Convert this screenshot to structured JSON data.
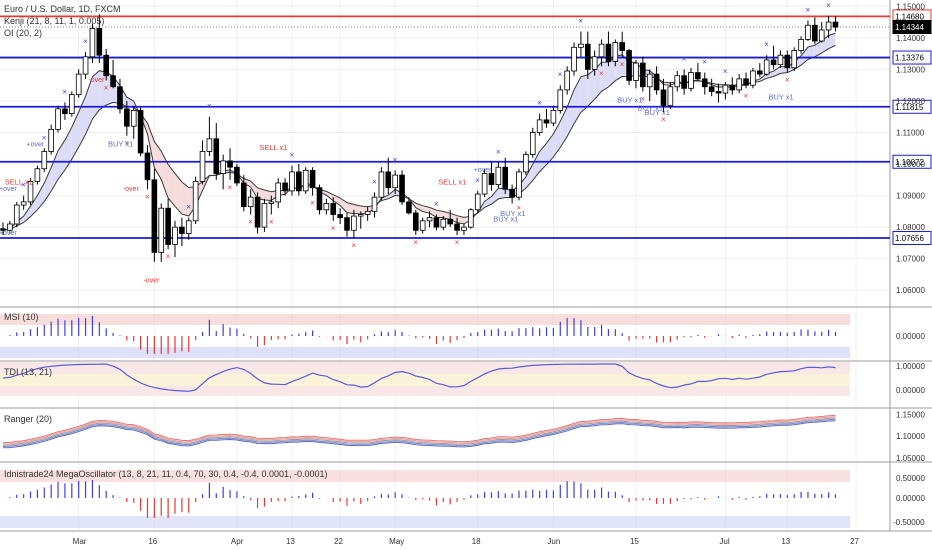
{
  "header": {
    "symbol_title": "Euro / U.S. Dollar, 1D, FXCM",
    "indicator_1": "Kenji (21, 8, 11, 1, 0.005)",
    "indicator_2": "OI (20, 2)"
  },
  "panes": {
    "msi": {
      "title": "MSI (10)",
      "ticks": [
        "0.00000"
      ]
    },
    "tdi": {
      "title": "TDI (13, 21)",
      "ticks": [
        "1.00000",
        "0.00000"
      ]
    },
    "ranger": {
      "title": "Ranger (20)",
      "ticks": [
        "1.15000",
        "1.10000",
        "1.05000"
      ]
    },
    "mega": {
      "title": "Idnistrade24 MegaOscillator (13, 8, 21, 11, 0.4, 70, 30, 0.4, -0.4, 0.0001, -0.0001)",
      "ticks": [
        "0.50000",
        "0.00000",
        "-0.50000"
      ]
    }
  },
  "price_axis": {
    "ticks": [
      "1.15000",
      "1.14000",
      "1.13000",
      "1.12000",
      "1.11000",
      "1.10000",
      "1.09000",
      "1.08000",
      "1.07000",
      "1.06000"
    ],
    "range": [
      1.055,
      1.152
    ]
  },
  "horizontal_levels": [
    {
      "label": "1.14680",
      "value": 1.1468,
      "color": "#e53935",
      "current": false
    },
    {
      "label": "1.14344",
      "value": 1.14344,
      "color": "#000000",
      "current": true
    },
    {
      "label": "1.13376",
      "value": 1.13376,
      "color": "#1a1adc",
      "current": false
    },
    {
      "label": "1.11815",
      "value": 1.11815,
      "color": "#1a1adc",
      "current": false
    },
    {
      "label": "1.10072",
      "value": 1.10072,
      "color": "#1a1adc",
      "current": false
    },
    {
      "label": "1.07656",
      "value": 1.07656,
      "color": "#1a1adc",
      "current": false
    }
  ],
  "time_axis": {
    "labels": [
      {
        "text": "Mar",
        "bar": 11
      },
      {
        "text": "16",
        "bar": 22
      },
      {
        "text": "Apr",
        "bar": 34
      },
      {
        "text": "13",
        "bar": 42
      },
      {
        "text": "22",
        "bar": 49
      },
      {
        "text": "May",
        "bar": 57
      },
      {
        "text": "18",
        "bar": 69
      },
      {
        "text": "Jun",
        "bar": 80
      },
      {
        "text": "15",
        "bar": 92
      },
      {
        "text": "Jul",
        "bar": 105
      },
      {
        "text": "13",
        "bar": 114
      },
      {
        "text": "27",
        "bar": 124
      }
    ]
  },
  "signal_labels": [
    {
      "text": "SELL x1",
      "bar": 2,
      "price": 1.0935,
      "color": "#e53935"
    },
    {
      "text": "BUY x1",
      "bar": 17,
      "price": 1.1055,
      "color": "#5c6bc0"
    },
    {
      "text": "SELL x1",
      "bar": 39,
      "price": 1.1045,
      "color": "#e53935"
    },
    {
      "text": "SELL x1",
      "bar": 65,
      "price": 1.0935,
      "color": "#e53935"
    },
    {
      "text": "BUY x1",
      "bar": 74,
      "price": 1.0835,
      "color": "#5c6bc0"
    },
    {
      "text": "BUY x1",
      "bar": 73,
      "price": 1.0818,
      "color": "#5c6bc0"
    },
    {
      "text": "BUY x1",
      "bar": 91,
      "price": 1.1195,
      "color": "#5c6bc0"
    },
    {
      "text": "BUY x1",
      "bar": 94,
      "price": 1.117,
      "color": "#5c6bc0"
    },
    {
      "text": "BUY x1",
      "bar": 95,
      "price": 1.1155,
      "color": "#5c6bc0"
    },
    {
      "text": "BUY x1",
      "bar": 113,
      "price": 1.1205,
      "color": "#5c6bc0"
    }
  ],
  "over_labels": [
    {
      "text": "+over",
      "bar": 4,
      "price": 1.1055,
      "color": "#5c6bc0"
    },
    {
      "text": "-over",
      "bar": 13,
      "price": 1.126,
      "color": "#e53935"
    },
    {
      "text": "-over",
      "bar": 18,
      "price": 1.0915,
      "color": "#e53935"
    },
    {
      "text": "-over",
      "bar": 21,
      "price": 1.0625,
      "color": "#e53935"
    },
    {
      "text": "+over",
      "bar": 69,
      "price": 1.0975,
      "color": "#5c6bc0"
    },
    {
      "text": "+over",
      "bar": 0,
      "price": 1.0915,
      "color": "#5c6bc0"
    },
    {
      "text": "+over",
      "bar": 0,
      "price": 1.0775,
      "color": "#5c6bc0"
    }
  ],
  "colors": {
    "up": "#ffffff",
    "down": "#000000",
    "kenji_fill_bull": "#dcdcf7",
    "kenji_fill_bear": "#f6dcdc",
    "kenji_fill_neutral": "#e4efe0",
    "blue": "#3f3fe0",
    "red": "#e53935",
    "band_red": "#f4c7c7",
    "band_blue": "#c9cdf6",
    "grid": "#d9d9d9"
  },
  "chart_data": {
    "type": "candlestick",
    "symbol": "Euro / U.S. Dollar",
    "interval": "1D",
    "source": "FXCM",
    "candles": [
      [
        1.0795,
        1.0815,
        1.0775,
        1.079
      ],
      [
        1.079,
        1.082,
        1.078,
        1.081
      ],
      [
        1.081,
        1.088,
        1.08,
        1.087
      ],
      [
        1.087,
        1.09,
        1.0855,
        1.088
      ],
      [
        1.088,
        1.0955,
        1.087,
        1.0945
      ],
      [
        1.0945,
        1.0995,
        1.0935,
        1.0985
      ],
      [
        1.0985,
        1.105,
        1.0975,
        1.104
      ],
      [
        1.104,
        1.1125,
        1.103,
        1.111
      ],
      [
        1.111,
        1.1185,
        1.11,
        1.1175
      ],
      [
        1.1175,
        1.1195,
        1.114,
        1.116
      ],
      [
        1.116,
        1.123,
        1.115,
        1.122
      ],
      [
        1.122,
        1.13,
        1.121,
        1.1285
      ],
      [
        1.1285,
        1.1355,
        1.127,
        1.134
      ],
      [
        1.134,
        1.1445,
        1.132,
        1.143
      ],
      [
        1.143,
        1.1475,
        1.132,
        1.1345
      ],
      [
        1.1345,
        1.1365,
        1.1265,
        1.128
      ],
      [
        1.128,
        1.133,
        1.124,
        1.1245
      ],
      [
        1.1245,
        1.127,
        1.116,
        1.1175
      ],
      [
        1.1175,
        1.12,
        1.109,
        1.112
      ],
      [
        1.112,
        1.1185,
        1.108,
        1.117
      ],
      [
        1.117,
        1.118,
        1.1025,
        1.1035
      ],
      [
        1.1035,
        1.106,
        1.092,
        1.095
      ],
      [
        1.095,
        1.0985,
        1.069,
        1.072
      ],
      [
        1.072,
        1.0875,
        1.069,
        1.086
      ],
      [
        1.086,
        1.089,
        1.073,
        1.0745
      ],
      [
        1.0745,
        1.082,
        1.0705,
        1.08
      ],
      [
        1.08,
        1.083,
        1.074,
        1.078
      ],
      [
        1.078,
        1.083,
        1.076,
        1.082
      ],
      [
        1.082,
        1.096,
        1.081,
        1.0945
      ],
      [
        1.0945,
        1.1075,
        1.0935,
        1.104
      ],
      [
        1.104,
        1.115,
        1.1025,
        1.108
      ],
      [
        1.108,
        1.113,
        1.095,
        1.097
      ],
      [
        1.097,
        1.103,
        1.092,
        1.101
      ],
      [
        1.101,
        1.105,
        1.095,
        1.099
      ],
      [
        1.099,
        1.1,
        1.093,
        1.094
      ],
      [
        1.094,
        1.0965,
        1.085,
        1.0865
      ],
      [
        1.0865,
        1.092,
        1.084,
        1.0895
      ],
      [
        1.0895,
        1.091,
        1.078,
        1.08
      ],
      [
        1.08,
        1.089,
        1.0785,
        1.0875
      ],
      [
        1.0875,
        1.09,
        1.084,
        1.088
      ],
      [
        1.088,
        1.0955,
        1.086,
        1.094
      ],
      [
        1.094,
        1.0955,
        1.09,
        1.0915
      ],
      [
        1.0915,
        1.0995,
        1.09,
        1.0975
      ],
      [
        1.0975,
        1.1,
        1.09,
        1.0915
      ],
      [
        1.0915,
        1.099,
        1.0905,
        1.098
      ],
      [
        1.098,
        1.099,
        1.09,
        1.0925
      ],
      [
        1.0925,
        1.0935,
        1.084,
        1.0855
      ],
      [
        1.0855,
        1.089,
        1.084,
        1.0875
      ],
      [
        1.0875,
        1.0895,
        1.082,
        1.084
      ],
      [
        1.084,
        1.086,
        1.081,
        1.083
      ],
      [
        1.083,
        1.0845,
        1.077,
        1.079
      ],
      [
        1.079,
        1.0855,
        1.0765,
        1.0835
      ],
      [
        1.0835,
        1.085,
        1.0795,
        1.084
      ],
      [
        1.084,
        1.0865,
        1.082,
        1.085
      ],
      [
        1.085,
        1.091,
        1.083,
        1.0895
      ],
      [
        1.0895,
        1.099,
        1.0885,
        1.0975
      ],
      [
        1.0975,
        1.102,
        1.0905,
        1.0925
      ],
      [
        1.0925,
        1.098,
        1.0905,
        1.0965
      ],
      [
        1.0965,
        1.098,
        1.087,
        1.088
      ],
      [
        1.088,
        1.0895,
        1.084,
        1.0845
      ],
      [
        1.0845,
        1.0855,
        1.0775,
        1.079
      ],
      [
        1.079,
        1.083,
        1.078,
        1.082
      ],
      [
        1.082,
        1.085,
        1.08,
        1.083
      ],
      [
        1.083,
        1.084,
        1.079,
        1.08
      ],
      [
        1.08,
        1.0835,
        1.079,
        1.0825
      ],
      [
        1.0825,
        1.0855,
        1.08,
        1.081
      ],
      [
        1.081,
        1.083,
        1.0775,
        1.079
      ],
      [
        1.079,
        1.081,
        1.0775,
        1.08
      ],
      [
        1.08,
        1.086,
        1.0795,
        1.0855
      ],
      [
        1.0855,
        1.0915,
        1.0845,
        1.0905
      ],
      [
        1.0905,
        1.0985,
        1.0895,
        1.097
      ],
      [
        1.097,
        1.101,
        1.0915,
        1.0935
      ],
      [
        1.0935,
        1.1005,
        1.0925,
        1.099
      ],
      [
        1.099,
        1.102,
        1.0905,
        1.092
      ],
      [
        1.092,
        1.0935,
        1.0875,
        1.0895
      ],
      [
        1.0895,
        1.0985,
        1.0885,
        1.0975
      ],
      [
        1.0975,
        1.104,
        1.0965,
        1.103
      ],
      [
        1.103,
        1.1115,
        1.102,
        1.11
      ],
      [
        1.11,
        1.116,
        1.109,
        1.114
      ],
      [
        1.114,
        1.1175,
        1.1115,
        1.113
      ],
      [
        1.113,
        1.1185,
        1.112,
        1.117
      ],
      [
        1.117,
        1.125,
        1.116,
        1.1235
      ],
      [
        1.1235,
        1.131,
        1.122,
        1.1295
      ],
      [
        1.1295,
        1.1385,
        1.128,
        1.137
      ],
      [
        1.137,
        1.142,
        1.134,
        1.138
      ],
      [
        1.138,
        1.142,
        1.127,
        1.13
      ],
      [
        1.13,
        1.136,
        1.128,
        1.134
      ],
      [
        1.134,
        1.1395,
        1.131,
        1.138
      ],
      [
        1.138,
        1.142,
        1.131,
        1.1325
      ],
      [
        1.1325,
        1.1395,
        1.131,
        1.1385
      ],
      [
        1.1385,
        1.142,
        1.134,
        1.136
      ],
      [
        1.136,
        1.1365,
        1.125,
        1.1265
      ],
      [
        1.1265,
        1.133,
        1.124,
        1.132
      ],
      [
        1.132,
        1.134,
        1.123,
        1.1245
      ],
      [
        1.1245,
        1.13,
        1.12,
        1.1285
      ],
      [
        1.1285,
        1.131,
        1.122,
        1.1235
      ],
      [
        1.1235,
        1.127,
        1.1165,
        1.1185
      ],
      [
        1.1185,
        1.126,
        1.1175,
        1.1245
      ],
      [
        1.1245,
        1.1295,
        1.123,
        1.128
      ],
      [
        1.128,
        1.13,
        1.122,
        1.124
      ],
      [
        1.124,
        1.1305,
        1.123,
        1.129
      ],
      [
        1.129,
        1.132,
        1.1265,
        1.127
      ],
      [
        1.127,
        1.129,
        1.122,
        1.1245
      ],
      [
        1.1245,
        1.127,
        1.1215,
        1.123
      ],
      [
        1.123,
        1.1255,
        1.1195,
        1.1225
      ],
      [
        1.1225,
        1.126,
        1.1205,
        1.125
      ],
      [
        1.125,
        1.1275,
        1.122,
        1.1235
      ],
      [
        1.1235,
        1.1285,
        1.1225,
        1.127
      ],
      [
        1.127,
        1.129,
        1.124,
        1.125
      ],
      [
        1.125,
        1.1305,
        1.124,
        1.1295
      ],
      [
        1.1295,
        1.132,
        1.1275,
        1.1285
      ],
      [
        1.1285,
        1.1345,
        1.128,
        1.133
      ],
      [
        1.133,
        1.1375,
        1.13,
        1.1315
      ],
      [
        1.1315,
        1.136,
        1.1305,
        1.1345
      ],
      [
        1.1345,
        1.136,
        1.129,
        1.1305
      ],
      [
        1.1305,
        1.137,
        1.1295,
        1.136
      ],
      [
        1.136,
        1.1405,
        1.135,
        1.1395
      ],
      [
        1.1395,
        1.1455,
        1.139,
        1.144
      ],
      [
        1.144,
        1.1465,
        1.138,
        1.139
      ],
      [
        1.139,
        1.145,
        1.1385,
        1.1425
      ],
      [
        1.1425,
        1.147,
        1.14,
        1.145
      ],
      [
        1.145,
        1.147,
        1.142,
        1.1434
      ]
    ],
    "ylim": [
      1.055,
      1.152
    ]
  }
}
